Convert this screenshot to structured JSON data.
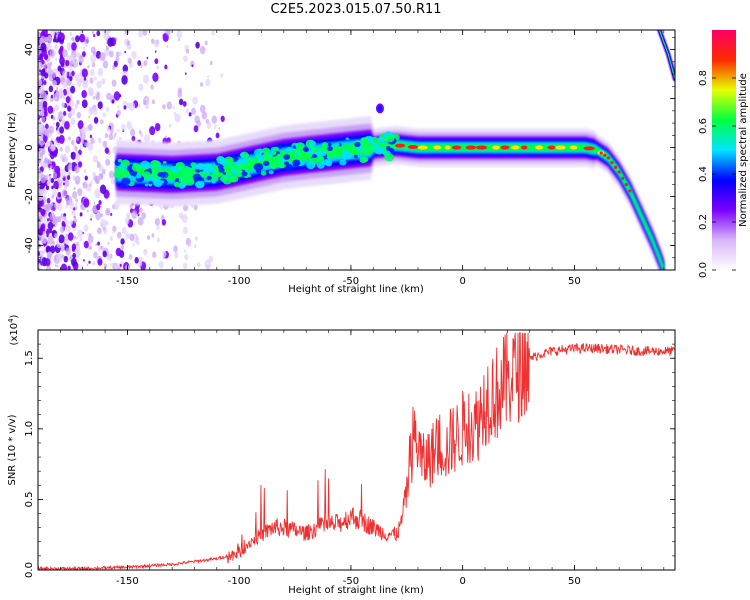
{
  "title": "C2E5.2023.015.07.50.R11",
  "chart_data": [
    {
      "type": "heatmap",
      "xlabel": "Height of straight line (km)",
      "ylabel": "Frequency (Hz)",
      "xlim": [
        -190,
        95
      ],
      "ylim": [
        -50,
        48
      ],
      "xticks": [
        -150,
        -100,
        -50,
        0,
        50
      ],
      "yticks": [
        -40,
        -20,
        0,
        20,
        40
      ],
      "colorbar": {
        "label": "Normalized spectral amplitude",
        "range": [
          0,
          1
        ],
        "ticks": [
          "0.0",
          "0.2",
          "0.4",
          "0.6",
          "0.8"
        ],
        "colors": [
          "#ffffff",
          "#d8b4f8",
          "#7b00ff",
          "#0000ff",
          "#00e5ff",
          "#00ff40",
          "#e6ff00",
          "#ff2a00",
          "#ff0066"
        ]
      },
      "ridge": {
        "x": [
          -155,
          -130,
          -110,
          -100,
          -80,
          -60,
          -40,
          -30,
          -20,
          0,
          20,
          40,
          55,
          60,
          65,
          70,
          75,
          80,
          85,
          88,
          90
        ],
        "y": [
          -10,
          -11,
          -10,
          -8,
          -4,
          -2,
          0,
          1,
          0,
          0,
          0,
          0,
          0,
          -1,
          -4,
          -10,
          -18,
          -28,
          -38,
          -45,
          -50
        ]
      },
      "upper_branch": {
        "x": [
          88,
          92,
          95
        ],
        "y": [
          48,
          38,
          28
        ]
      }
    },
    {
      "type": "line",
      "xlabel": "Height of straight line (km)",
      "ylabel": "SNR (10 * v/v)",
      "scale_note": "(x10",
      "scale_exp": "4",
      "xlim": [
        -190,
        95
      ],
      "ylim": [
        0,
        1.7
      ],
      "xticks": [
        -150,
        -100,
        -50,
        0,
        50
      ],
      "yticks": [
        "0.0",
        "0.5",
        "1.0",
        "1.5"
      ],
      "line_color": "#f03030",
      "series": [
        {
          "x": [
            -190,
            -170,
            -150,
            -130,
            -120,
            -110,
            -100,
            -95,
            -90,
            -85,
            -80,
            -75,
            -70,
            -65,
            -60,
            -55,
            -50,
            -45,
            -40,
            -35,
            -30,
            -28,
            -25,
            -22,
            -20,
            -18,
            -15,
            -12,
            -10,
            -7,
            -5,
            -2,
            0,
            3,
            5,
            8,
            10,
            12,
            15,
            18,
            20,
            23,
            25,
            28,
            30,
            35,
            40,
            50,
            60,
            70,
            80,
            90,
            95
          ],
          "y": [
            0.01,
            0.01,
            0.02,
            0.04,
            0.06,
            0.08,
            0.12,
            0.2,
            0.25,
            0.3,
            0.3,
            0.28,
            0.26,
            0.3,
            0.32,
            0.33,
            0.38,
            0.35,
            0.3,
            0.26,
            0.25,
            0.3,
            0.55,
            0.95,
            0.9,
            0.75,
            0.8,
            0.85,
            0.9,
            0.85,
            0.92,
            0.95,
            1.0,
            1.05,
            1.0,
            1.1,
            1.2,
            1.25,
            1.25,
            1.3,
            1.35,
            1.42,
            1.45,
            1.48,
            1.5,
            1.53,
            1.55,
            1.57,
            1.57,
            1.56,
            1.55,
            1.55,
            1.55
          ]
        }
      ]
    }
  ]
}
